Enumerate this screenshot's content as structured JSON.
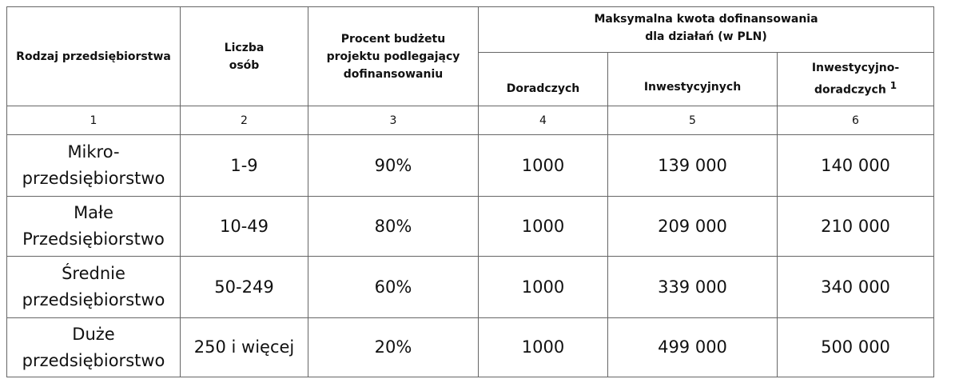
{
  "table": {
    "header": {
      "company_type": "Rodzaj przedsiębiorstwa",
      "persons": "Liczba\nosób",
      "budget_percent": "Procent budżetu\nprojektu podlegający\ndofinansowaniu",
      "group": "Maksymalna kwota dofinansowania\ndla działań (w PLN)",
      "advisory": "Doradczych",
      "investment": "Inwestycyjnych",
      "mixed": "Inwestycyjno-\ndoradczych",
      "mixed_footnote": "1"
    },
    "column_numbers": [
      "1",
      "2",
      "3",
      "4",
      "5",
      "6"
    ],
    "rows": [
      [
        "Mikro-\nprzedsiębiorstwo",
        "1-9",
        "90%",
        "1000",
        "139 000",
        "140 000"
      ],
      [
        "Małe\nPrzedsiębiorstwo",
        "10-49",
        "80%",
        "1000",
        "209 000",
        "210 000"
      ],
      [
        "Średnie\nprzedsiębiorstwo",
        "50-249",
        "60%",
        "1000",
        "339 000",
        "340 000"
      ],
      [
        "Duże\nprzedsiębiorstwo",
        "250 i więcej",
        "20%",
        "1000",
        "499 000",
        "500 000"
      ]
    ]
  }
}
